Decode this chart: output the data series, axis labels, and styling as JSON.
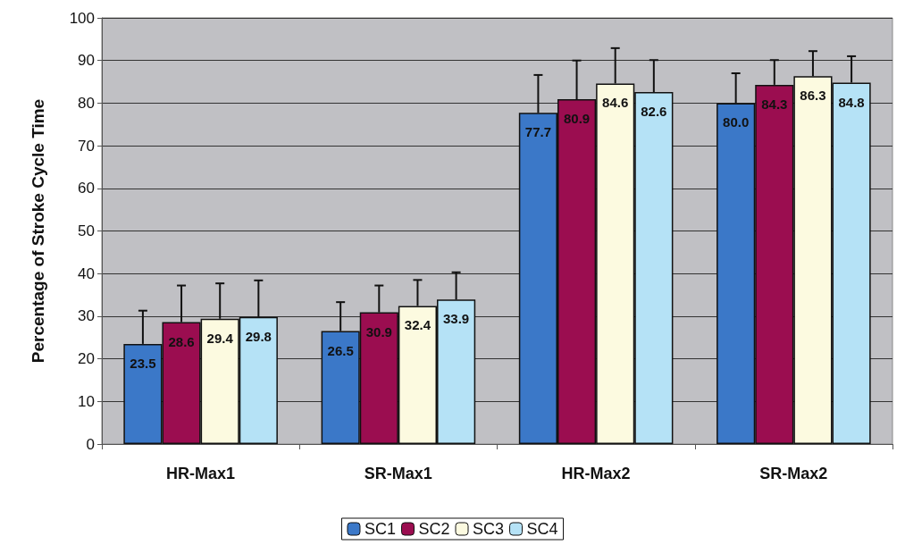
{
  "chart_data": {
    "type": "bar",
    "ylabel": "Percentage of Stroke Cycle Time",
    "categories": [
      "HR-Max1",
      "SR-Max1",
      "HR-Max2",
      "SR-Max2"
    ],
    "series": [
      {
        "name": "SC1",
        "color": "#3b78c8",
        "values": [
          23.5,
          26.5,
          77.7,
          80.0
        ],
        "value_labels": [
          "23.5",
          "26.5",
          "77.7",
          "80.0"
        ],
        "errors": [
          [
            23.5,
            31.3
          ],
          [
            26.5,
            33.3
          ],
          [
            77.7,
            86.6
          ],
          [
            80.0,
            87.0
          ]
        ]
      },
      {
        "name": "SC2",
        "color": "#9b0d50",
        "values": [
          28.6,
          30.9,
          80.9,
          84.3
        ],
        "value_labels": [
          "28.6",
          "30.9",
          "80.9",
          "84.3"
        ],
        "errors": [
          [
            28.6,
            37.2
          ],
          [
            30.9,
            37.2
          ],
          [
            80.9,
            90.0
          ],
          [
            84.3,
            90.1
          ]
        ]
      },
      {
        "name": "SC3",
        "color": "#fcfae0",
        "values": [
          29.4,
          32.4,
          84.6,
          86.3
        ],
        "value_labels": [
          "29.4",
          "32.4",
          "84.6",
          "86.3"
        ],
        "errors": [
          [
            29.4,
            37.7
          ],
          [
            32.4,
            38.5
          ],
          [
            84.6,
            92.9
          ],
          [
            86.3,
            92.2
          ]
        ]
      },
      {
        "name": "SC4",
        "color": "#b5e2f6",
        "values": [
          29.8,
          33.9,
          82.6,
          84.8
        ],
        "value_labels": [
          "29.8",
          "33.9",
          "82.6",
          "84.8"
        ],
        "errors": [
          [
            29.8,
            38.4
          ],
          [
            33.9,
            40.3
          ],
          [
            82.6,
            90.1
          ],
          [
            84.8,
            91.0
          ]
        ]
      }
    ],
    "ylim": [
      0,
      100
    ],
    "yticks": [
      0,
      10,
      20,
      30,
      40,
      50,
      60,
      70,
      80,
      90,
      100
    ],
    "grid": "y",
    "legend": "bottom"
  }
}
